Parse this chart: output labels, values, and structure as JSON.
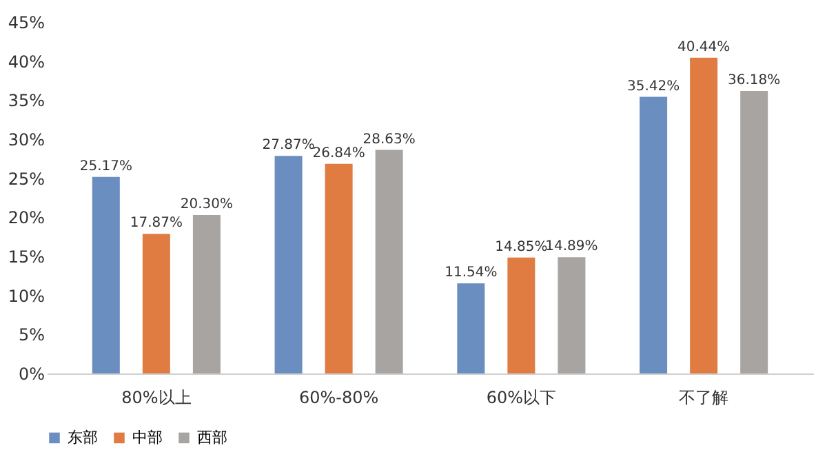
{
  "chart_data": {
    "type": "bar",
    "categories": [
      "80%以上",
      "60%-80%",
      "60%以下",
      "不了解"
    ],
    "series": [
      {
        "name": "东部",
        "color": "#6a8ebf",
        "values": [
          25.17,
          27.87,
          11.54,
          35.42
        ],
        "value_labels": [
          "25.17%",
          "27.87%",
          "11.54%",
          "35.42%"
        ]
      },
      {
        "name": "中部",
        "color": "#e07b42",
        "values": [
          17.87,
          26.84,
          14.85,
          40.44
        ],
        "value_labels": [
          "17.87%",
          "26.84%",
          "14.85%",
          "40.44%"
        ]
      },
      {
        "name": "西部",
        "color": "#a8a4a1",
        "values": [
          20.3,
          28.63,
          14.89,
          36.18
        ],
        "value_labels": [
          "20.30%",
          "28.63%",
          "14.89%",
          "36.18%"
        ]
      }
    ],
    "ylim": [
      0,
      45
    ],
    "yticks": [
      {
        "value": 0,
        "label": "0%"
      },
      {
        "value": 5,
        "label": "5%"
      },
      {
        "value": 10,
        "label": "10%"
      },
      {
        "value": 15,
        "label": "15%"
      },
      {
        "value": 20,
        "label": "20%"
      },
      {
        "value": 25,
        "label": "25%"
      },
      {
        "value": 30,
        "label": "30%"
      },
      {
        "value": 35,
        "label": "35%"
      },
      {
        "value": 40,
        "label": "40%"
      },
      {
        "value": 45,
        "label": "45%"
      }
    ],
    "grid": false,
    "legend": "bottom"
  }
}
